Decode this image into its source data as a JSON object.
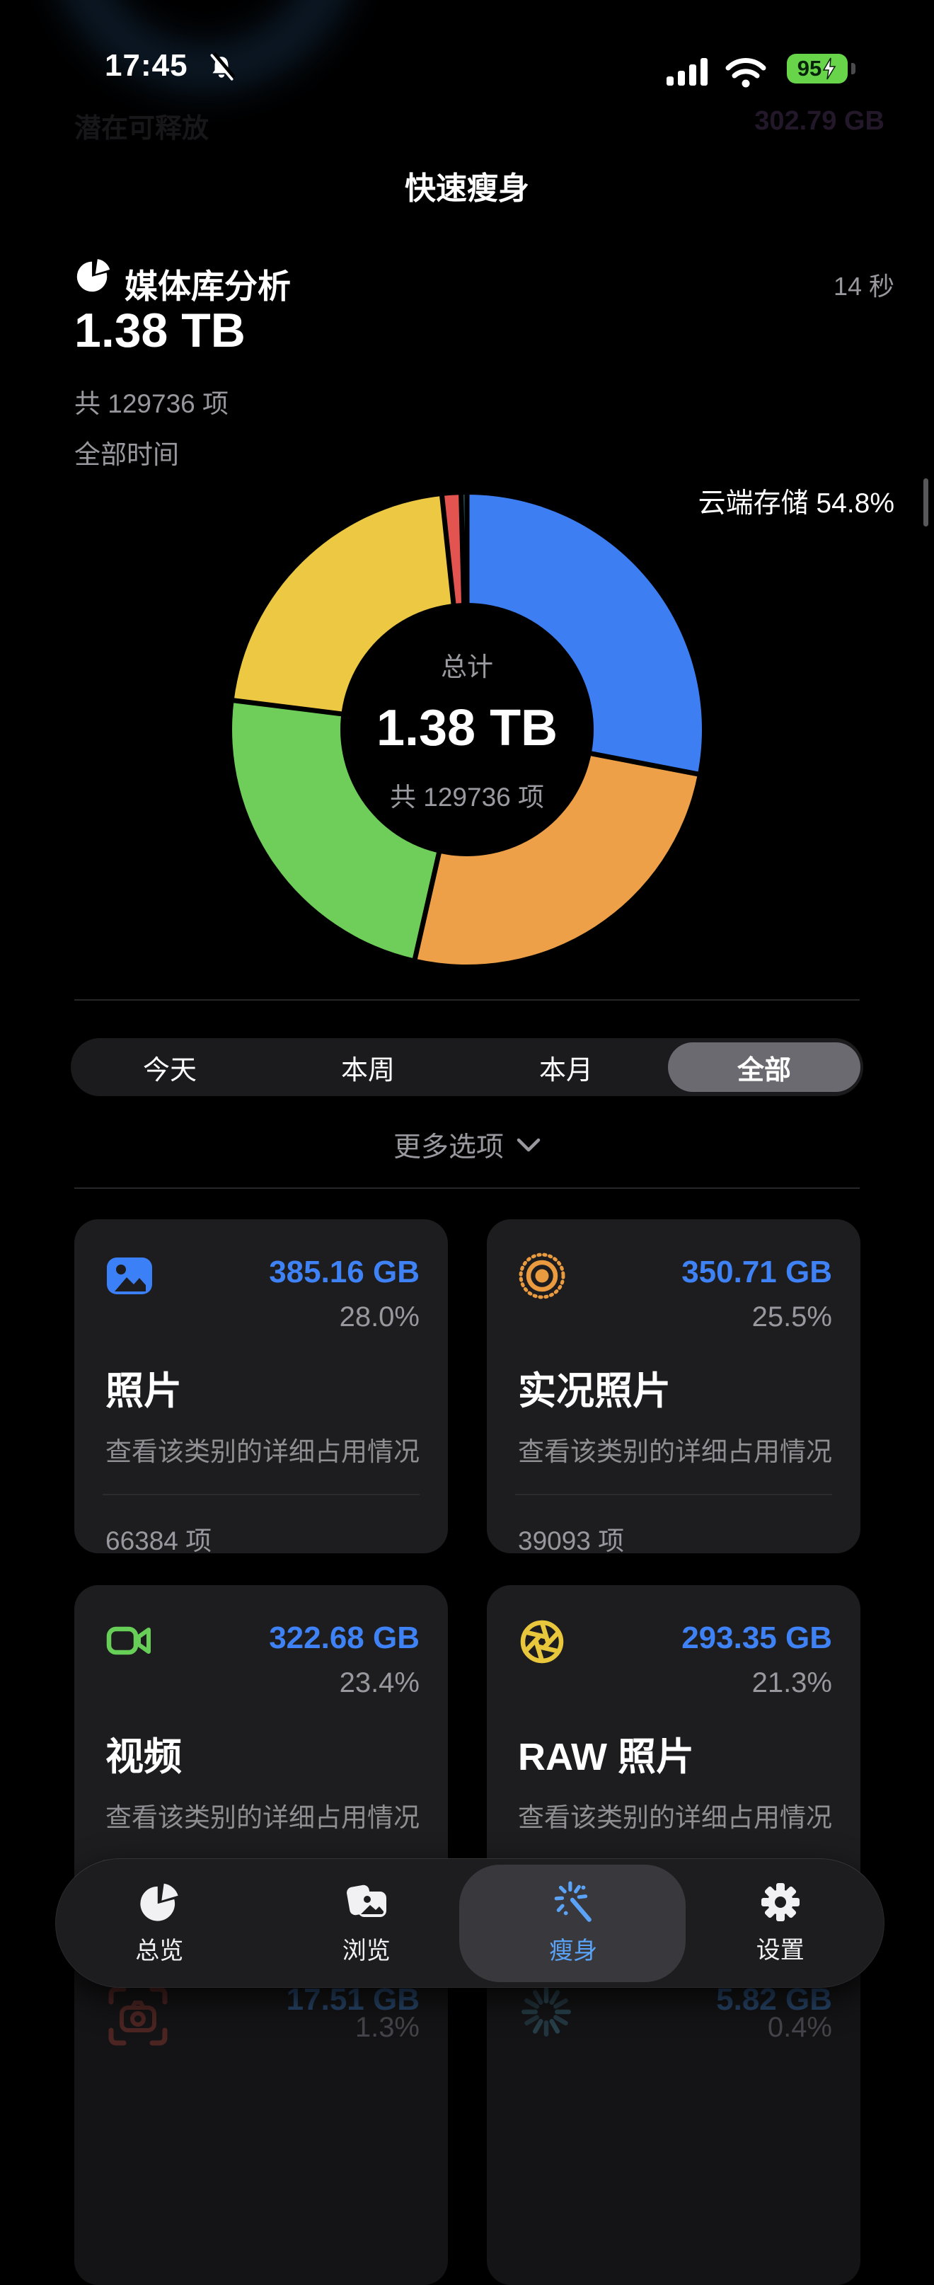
{
  "status_bar": {
    "time": "17:45",
    "battery_level": "95"
  },
  "dim_background": {
    "left_text": "潜在可释放",
    "right_text": "302.79 GB"
  },
  "nav_title": "快速瘦身",
  "analysis": {
    "title": "媒体库分析",
    "duration": "14 秒",
    "total_size": "1.38 TB",
    "total_items": "共 129736 项",
    "timeframe": "全部时间"
  },
  "chart_data": {
    "type": "pie",
    "subtype": "donut",
    "annotation": "云端存储 54.8%",
    "center": {
      "label": "总计",
      "value": "1.38 TB",
      "sub": "共 129736 项"
    },
    "inner_radius_ratio": 0.54,
    "segments": [
      {
        "label": "照片",
        "pct": 28.0,
        "color": "#3d7ff2"
      },
      {
        "label": "实况照片",
        "pct": 25.5,
        "color": "#eda047"
      },
      {
        "label": "视频",
        "pct": 23.4,
        "color": "#6fcd5a"
      },
      {
        "label": "RAW 照片",
        "pct": 21.3,
        "color": "#ecc843"
      },
      {
        "label": "",
        "pct": 1.3,
        "color": "#e35450"
      },
      {
        "label": "",
        "pct": 0.4,
        "color": "#2d6e73"
      }
    ]
  },
  "time_filter": {
    "options": [
      "今天",
      "本周",
      "本月",
      "全部"
    ],
    "selected": "全部"
  },
  "more_options_label": "更多选项",
  "categories": [
    {
      "icon": "photo-icon",
      "title": "照片",
      "size": "385.16 GB",
      "pct": "28.0%",
      "desc": "查看该类别的详细占用情况",
      "count": "66384 项"
    },
    {
      "icon": "live-photo-icon",
      "title": "实况照片",
      "size": "350.71 GB",
      "pct": "25.5%",
      "desc": "查看该类别的详细占用情况",
      "count": "39093 项"
    },
    {
      "icon": "video-icon",
      "title": "视频",
      "size": "322.68 GB",
      "pct": "23.4%",
      "desc": "查看该类别的详细占用情况"
    },
    {
      "icon": "aperture-icon",
      "title": "RAW 照片",
      "size": "293.35 GB",
      "pct": "21.3%",
      "desc": "查看该类别的详细占用情况"
    }
  ],
  "partial_row": [
    {
      "icon": "screenshot-icon",
      "size": "17.51 GB",
      "pct": "1.3%"
    },
    {
      "icon": "spinner-icon",
      "size": "5.82 GB",
      "pct": "0.4%"
    }
  ],
  "tab_bar": {
    "accent": "#5aa3f7",
    "items": [
      {
        "label": "总览",
        "icon": "pie-chart-icon",
        "selected": false
      },
      {
        "label": "浏览",
        "icon": "photos-stack-icon",
        "selected": false
      },
      {
        "label": "瘦身",
        "icon": "magic-wand-icon",
        "selected": true
      },
      {
        "label": "设置",
        "icon": "gear-icon",
        "selected": false
      }
    ]
  }
}
